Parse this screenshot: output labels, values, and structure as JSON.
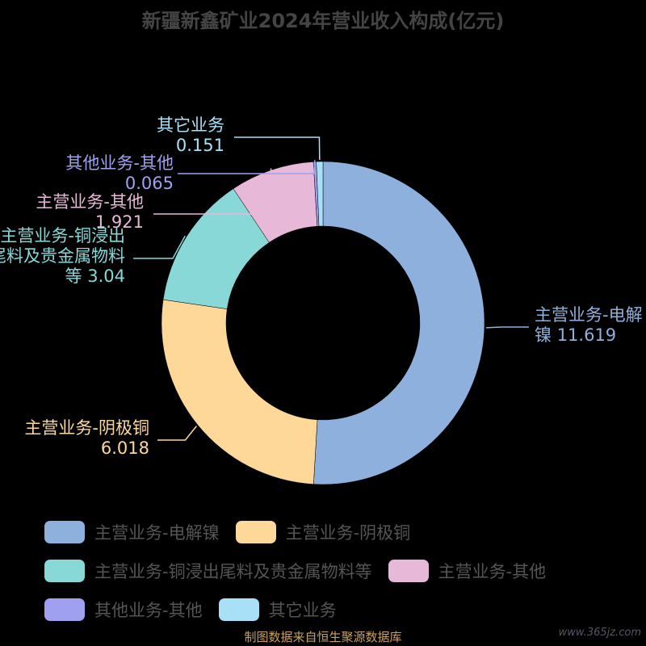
{
  "chart_data": {
    "type": "donut",
    "title": "新疆新鑫矿业2024年营业收入构成(亿元)",
    "categories": [
      "主营业务-电解镍",
      "主营业务-阴极铜",
      "主营业务-铜浸出尾料及贵金属物料等",
      "主营业务-其他",
      "其他业务-其他",
      "其它业务"
    ],
    "values": [
      11.619,
      6.018,
      3.04,
      1.921,
      0.065,
      0.151
    ],
    "colors": [
      "#8eb0dd",
      "#fdd899",
      "#88d8d8",
      "#e8b8d8",
      "#a0a0f0",
      "#a8e0f8"
    ],
    "source": "制图数据来自恒生聚源数据库",
    "watermark": "www.365jz.com"
  }
}
